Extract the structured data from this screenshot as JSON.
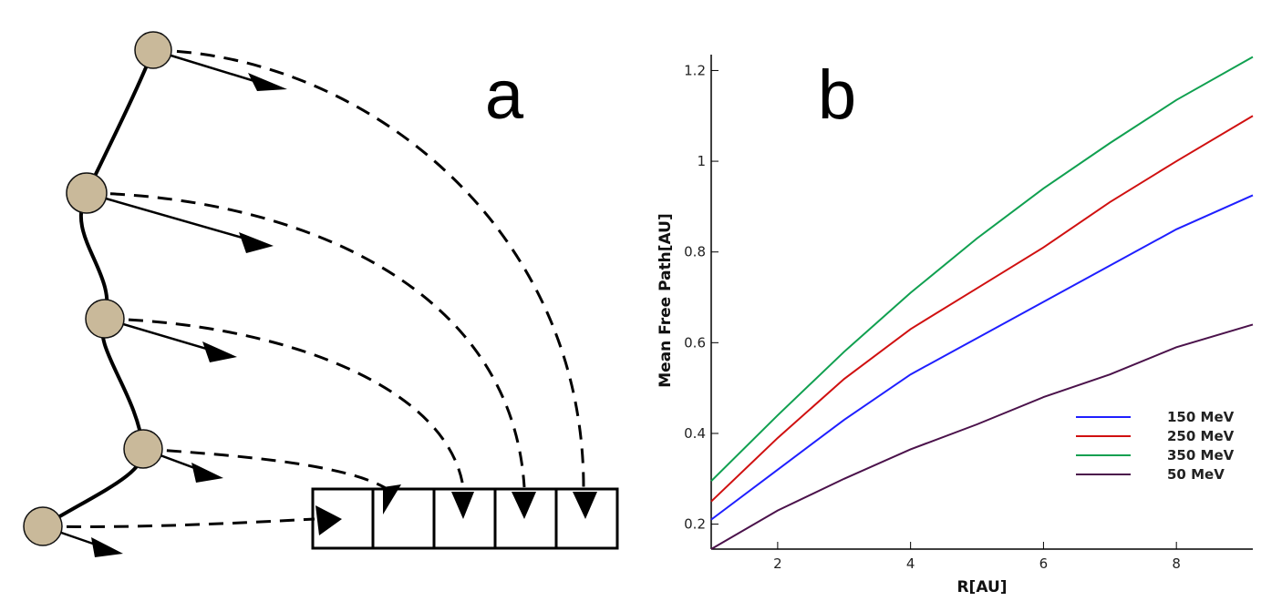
{
  "diagram": {
    "panel_label": "a"
  },
  "chart_data": {
    "type": "line",
    "panel_label": "b",
    "x_label": "R[AU]",
    "y_label": "Mean Free Path[AU]",
    "x": [
      1,
      2,
      3,
      4,
      5,
      6,
      7,
      8,
      9.15
    ],
    "series": [
      {
        "name": "150 MeV",
        "color": "#1f1fff",
        "values": [
          0.21,
          0.32,
          0.43,
          0.53,
          0.61,
          0.69,
          0.77,
          0.85,
          0.925
        ]
      },
      {
        "name": "250 MeV",
        "color": "#d01010",
        "values": [
          0.25,
          0.39,
          0.52,
          0.63,
          0.72,
          0.81,
          0.91,
          1.0,
          1.1
        ]
      },
      {
        "name": "350 MeV",
        "color": "#10a050",
        "values": [
          0.295,
          0.44,
          0.58,
          0.71,
          0.83,
          0.94,
          1.04,
          1.135,
          1.23
        ]
      },
      {
        "name": "50 MeV",
        "color": "#4b124b",
        "values": [
          0.145,
          0.23,
          0.3,
          0.365,
          0.42,
          0.48,
          0.53,
          0.59,
          0.64
        ]
      }
    ],
    "xlim": [
      1,
      9.15
    ],
    "ylim": [
      0.145,
      1.235
    ],
    "xticks": [
      2,
      4,
      6,
      8
    ],
    "yticks": [
      0.2,
      0.4,
      0.6,
      0.8,
      1,
      1.2
    ],
    "legend": "lower-right"
  }
}
